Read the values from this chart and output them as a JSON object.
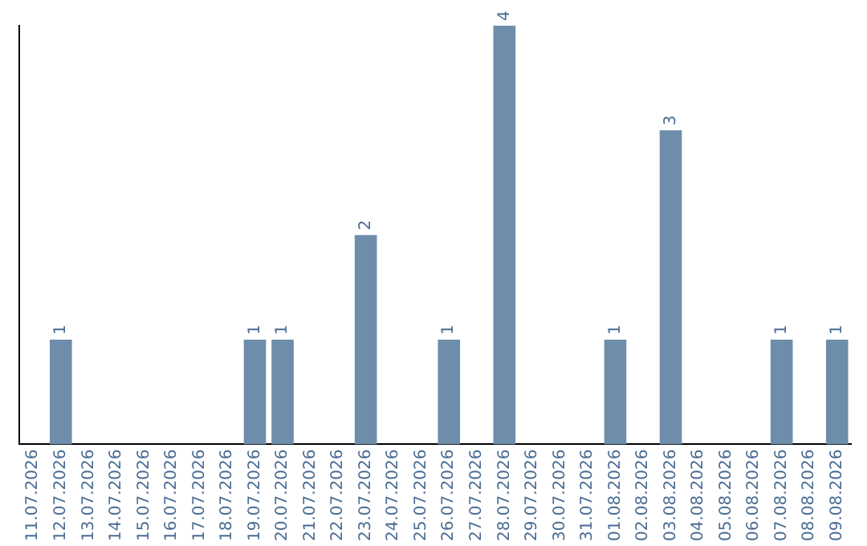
{
  "chart_data": {
    "type": "bar",
    "categories": [
      "11.07.2026",
      "12.07.2026",
      "13.07.2026",
      "14.07.2026",
      "15.07.2026",
      "16.07.2026",
      "17.07.2026",
      "18.07.2026",
      "19.07.2026",
      "20.07.2026",
      "21.07.2026",
      "22.07.2026",
      "23.07.2026",
      "24.07.2026",
      "25.07.2026",
      "26.07.2026",
      "27.07.2026",
      "28.07.2026",
      "29.07.2026",
      "30.07.2026",
      "31.07.2026",
      "01.08.2026",
      "02.08.2026",
      "03.08.2026",
      "04.08.2026",
      "05.08.2026",
      "06.08.2026",
      "07.08.2026",
      "08.08.2026",
      "09.08.2026"
    ],
    "values": [
      0,
      1,
      0,
      0,
      0,
      0,
      0,
      0,
      1,
      1,
      0,
      0,
      2,
      0,
      0,
      1,
      0,
      4,
      0,
      0,
      0,
      1,
      0,
      3,
      0,
      0,
      0,
      1,
      0,
      1
    ],
    "value_labels": [
      null,
      "1",
      null,
      null,
      null,
      null,
      null,
      null,
      "1",
      "1",
      null,
      null,
      "2",
      null,
      null,
      "1",
      null,
      "4",
      null,
      null,
      null,
      "1",
      null,
      "3",
      null,
      null,
      null,
      "1",
      null,
      "1"
    ],
    "color": "#6d8dab",
    "grid": false,
    "legend": false,
    "tick_labels": "x"
  }
}
